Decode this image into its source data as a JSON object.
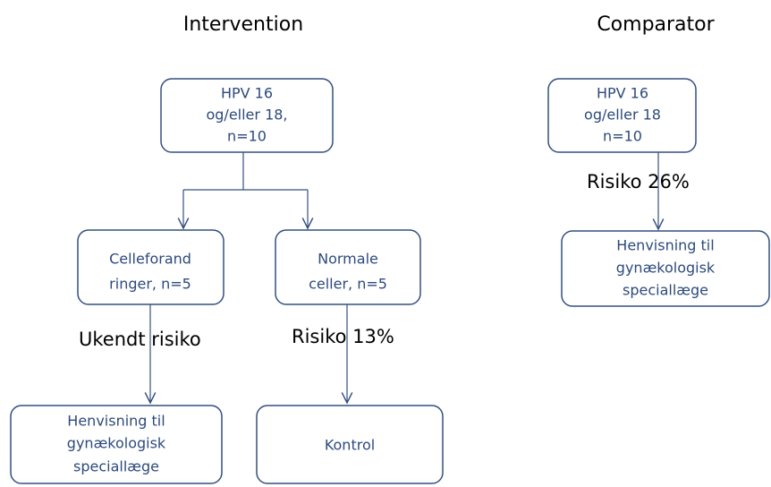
{
  "titles": {
    "intervention": "Intervention",
    "comparator": "Comparator"
  },
  "nodes": [
    {
      "lines": [
        "HPV 16",
        "og/eller 18,",
        "n=10"
      ]
    },
    {
      "lines": [
        "Celleforand",
        "ringer, n=5"
      ]
    },
    {
      "lines": [
        "Normale",
        "celler, n=5"
      ]
    },
    {
      "lines": [
        "Henvisning til",
        "gynækologisk",
        "speciallæge"
      ]
    },
    {
      "lines": [
        "Kontrol"
      ]
    },
    {
      "lines": [
        "HPV 16",
        "og/eller 18",
        "n=10"
      ]
    },
    {
      "lines": [
        "Henvisning til",
        "gynækologisk",
        "speciallæge"
      ]
    }
  ],
  "risks": [
    "Ukendt risiko",
    "Risiko 13%",
    "Risiko 26%"
  ]
}
